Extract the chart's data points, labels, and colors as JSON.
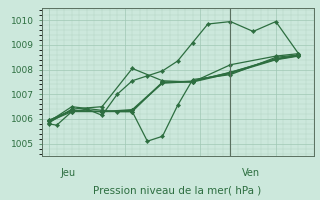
{
  "background_color": "#cce8dc",
  "grid_color": "#a0c8b4",
  "line_color": "#2d6e40",
  "xlabel": "Pression niveau de la mer( hPa )",
  "ylim": [
    1004.5,
    1010.5
  ],
  "yticks": [
    1005,
    1006,
    1007,
    1008,
    1009,
    1010
  ],
  "day_labels": [
    "Jeu",
    "Ven"
  ],
  "day_positions": [
    0.07,
    0.735
  ],
  "ven_line_x": 24.0,
  "xlim": [
    -1,
    35
  ],
  "series": [
    [
      0,
      1005.8,
      1,
      1005.75,
      3,
      1006.3,
      5,
      1006.4,
      7,
      1006.15,
      9,
      1007.0,
      11,
      1007.55,
      13,
      1007.75,
      15,
      1007.95,
      17,
      1008.35,
      19,
      1009.1,
      21,
      1009.85,
      24,
      1009.95,
      27,
      1009.55,
      30,
      1009.95,
      33,
      1008.65
    ],
    [
      0,
      1005.85,
      3,
      1006.4,
      7,
      1006.5,
      11,
      1008.05,
      15,
      1007.55,
      19,
      1007.5,
      24,
      1008.2,
      30,
      1008.55,
      33,
      1008.65
    ],
    [
      0,
      1005.9,
      3,
      1006.5,
      7,
      1006.35,
      9,
      1006.3,
      11,
      1006.3,
      13,
      1005.1,
      15,
      1005.3,
      17,
      1006.55,
      19,
      1007.6,
      24,
      1007.8,
      30,
      1008.5,
      33,
      1008.6
    ],
    [
      0,
      1005.9,
      3,
      1006.3,
      7,
      1006.3,
      11,
      1006.3,
      15,
      1007.5,
      19,
      1007.5,
      24,
      1007.85,
      30,
      1008.4,
      33,
      1008.55
    ],
    [
      0,
      1005.95,
      3,
      1006.35,
      7,
      1006.3,
      11,
      1006.35,
      15,
      1007.45,
      19,
      1007.52,
      24,
      1007.9,
      30,
      1008.42,
      33,
      1008.57
    ],
    [
      0,
      1005.95,
      3,
      1006.35,
      7,
      1006.3,
      11,
      1006.38,
      15,
      1007.48,
      19,
      1007.54,
      24,
      1007.88,
      30,
      1008.45,
      33,
      1008.58
    ]
  ]
}
